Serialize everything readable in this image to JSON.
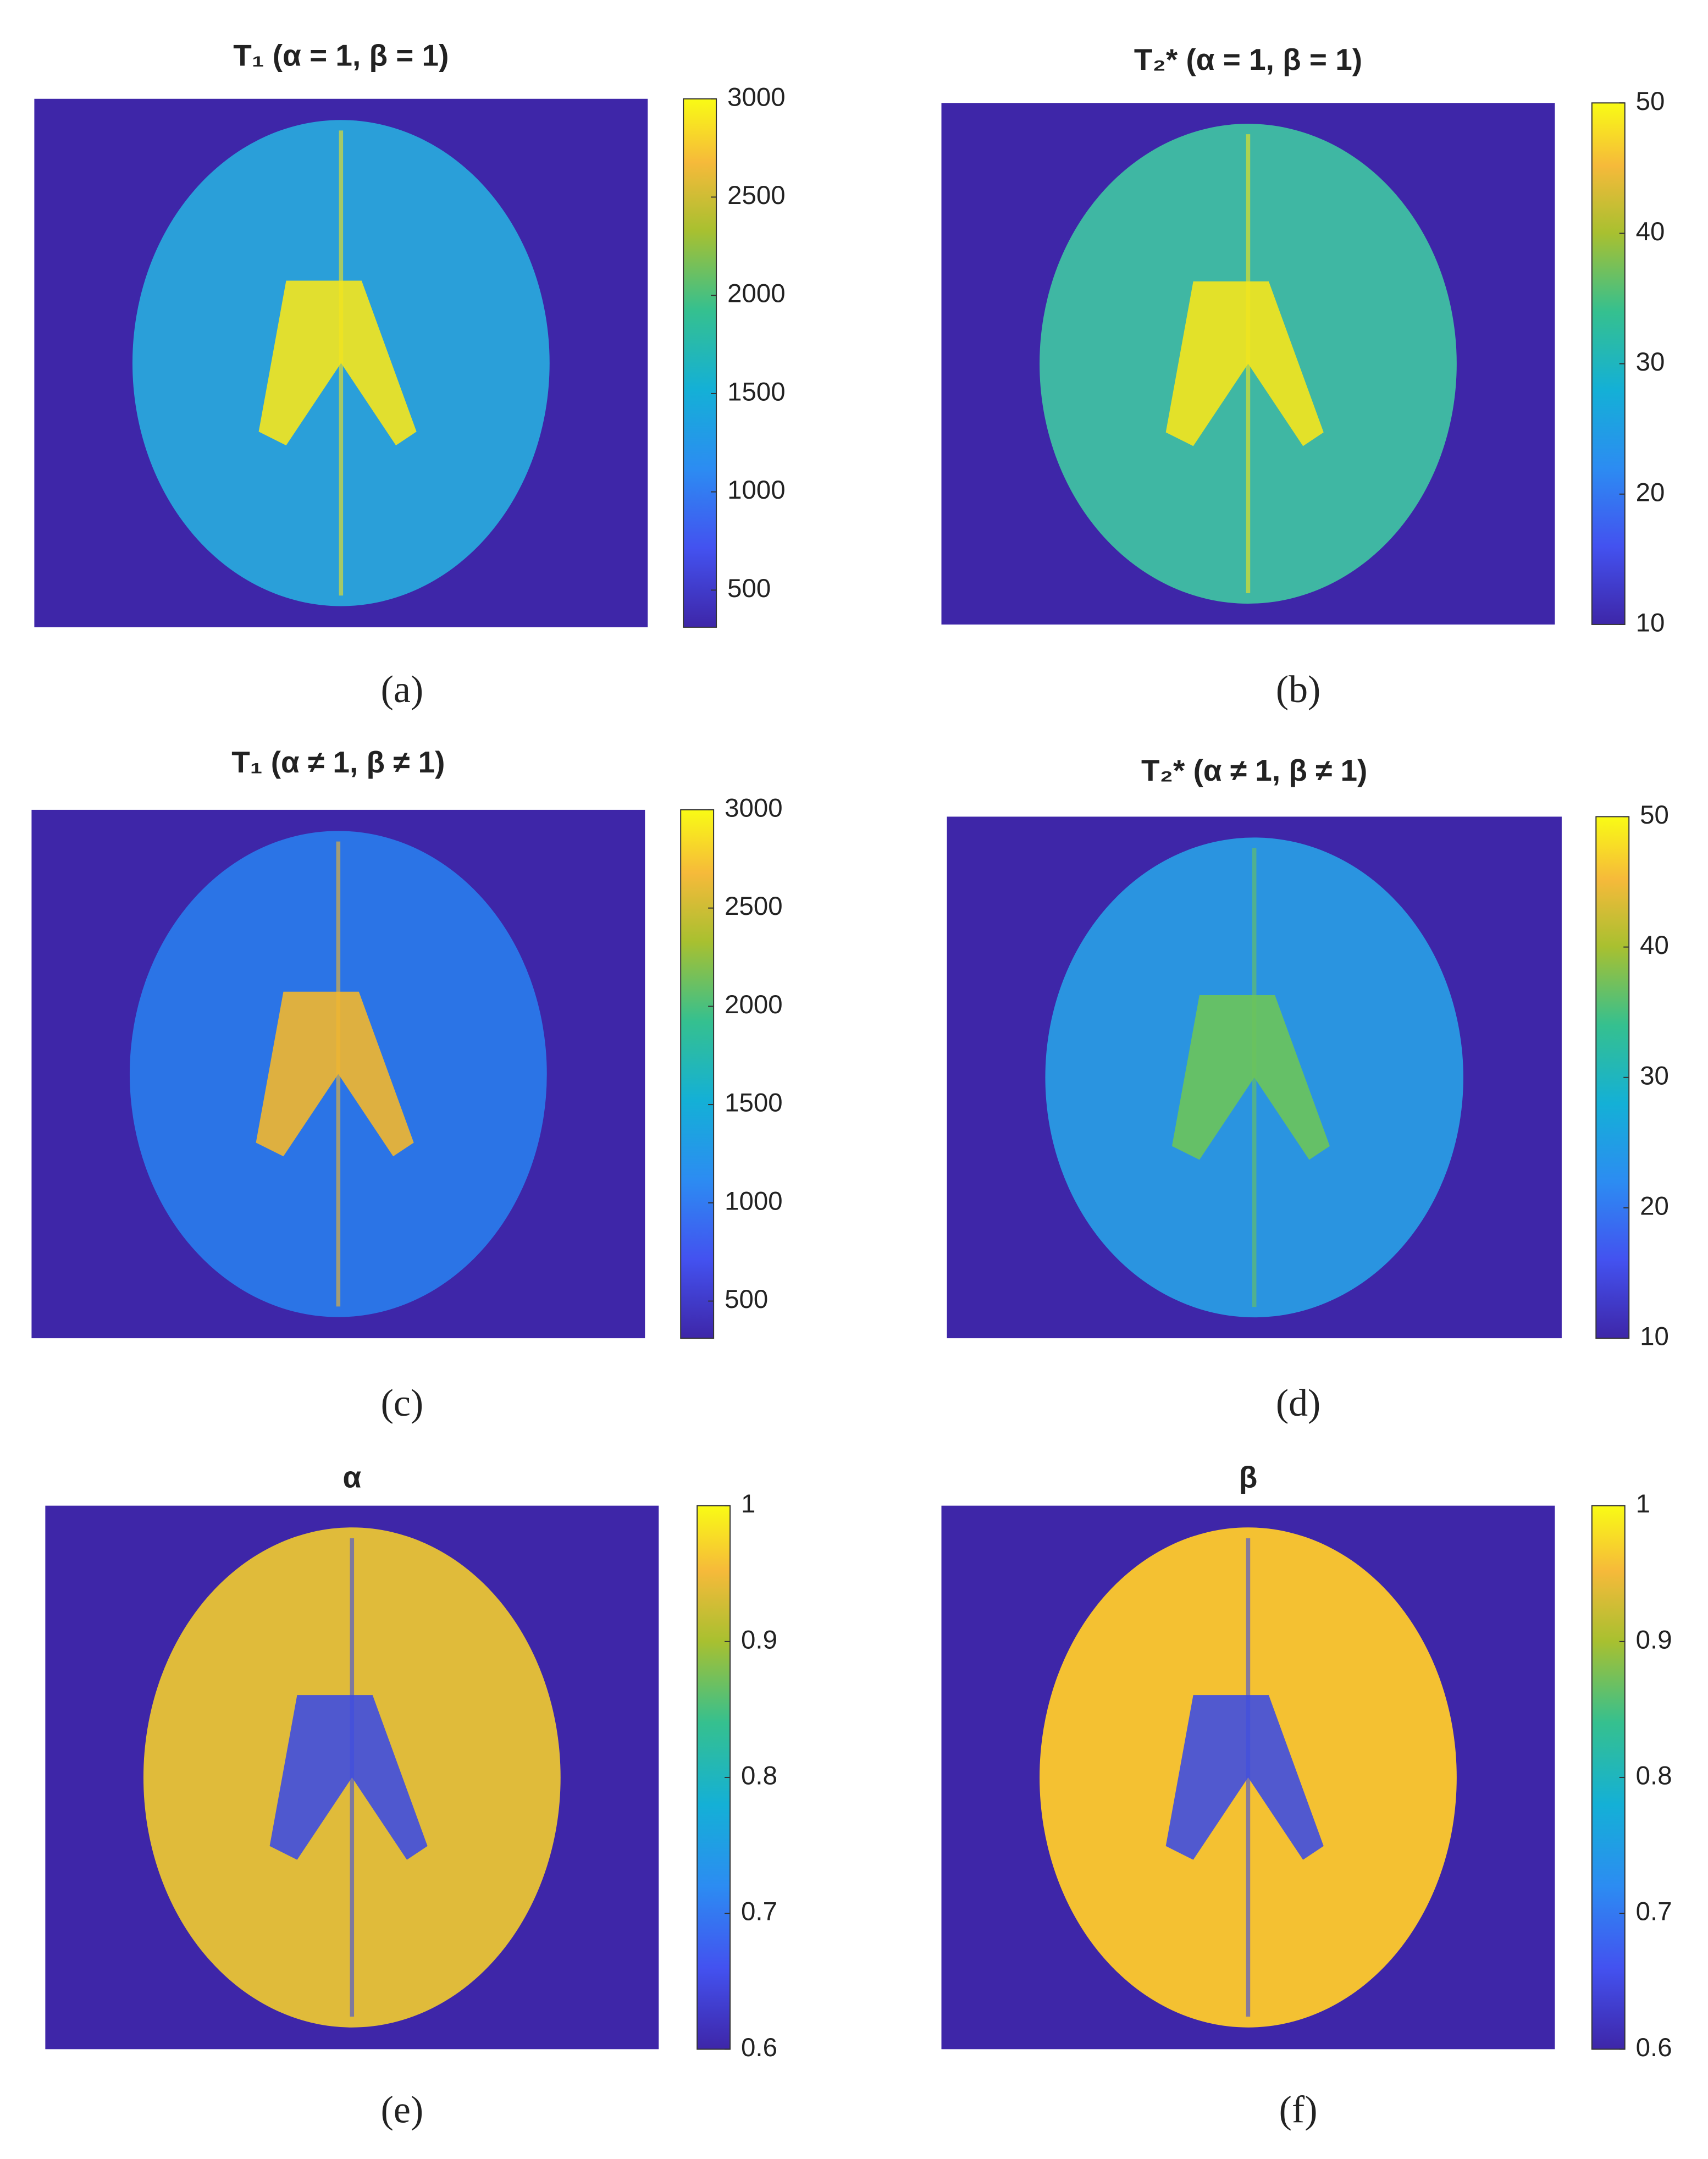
{
  "chart_data": [
    {
      "type": "image",
      "title": "T₁ (α = 1, β = 1)",
      "label": "(a)",
      "color": "#2a9fd9",
      "accent_color": "#f5e61c",
      "ylim": [
        311,
        3000
      ],
      "yticks": [
        500,
        1000,
        1500,
        2000,
        2500,
        3000
      ]
    },
    {
      "type": "image",
      "title": "T₂* (α = 1, β = 1)",
      "label": "(b)",
      "color": "#3fb7a3",
      "accent_color": "#f5e61c",
      "ylim": [
        10,
        50
      ],
      "yticks": [
        10,
        20,
        30,
        40,
        50
      ]
    },
    {
      "type": "image",
      "title": "T₁ (α ≠  1, β ≠  1)",
      "label": "(c)",
      "color": "#2b74e6",
      "accent_color": "#f2b72e",
      "ylim": [
        311,
        3000
      ],
      "yticks": [
        500,
        1000,
        1500,
        2000,
        2500,
        3000
      ]
    },
    {
      "type": "image",
      "title": "T₂* (α ≠  1, β ≠  1)",
      "label": "(d)",
      "color": "#2a94e0",
      "accent_color": "#6cc45a",
      "ylim": [
        10,
        50
      ],
      "yticks": [
        10,
        20,
        30,
        40,
        50
      ]
    },
    {
      "type": "image",
      "title": "α",
      "label": "(e)",
      "color": "#e0bb3a",
      "accent_color": "#3f4ee0",
      "ylim": [
        0.6,
        1
      ],
      "yticks": [
        0.6,
        0.7,
        0.8,
        0.9,
        1
      ]
    },
    {
      "type": "image",
      "title": "β",
      "label": "(f)",
      "color": "#f4c132",
      "accent_color": "#3f4ee0",
      "ylim": [
        0.6,
        1
      ],
      "yticks": [
        0.6,
        0.7,
        0.8,
        0.9,
        1
      ]
    }
  ]
}
